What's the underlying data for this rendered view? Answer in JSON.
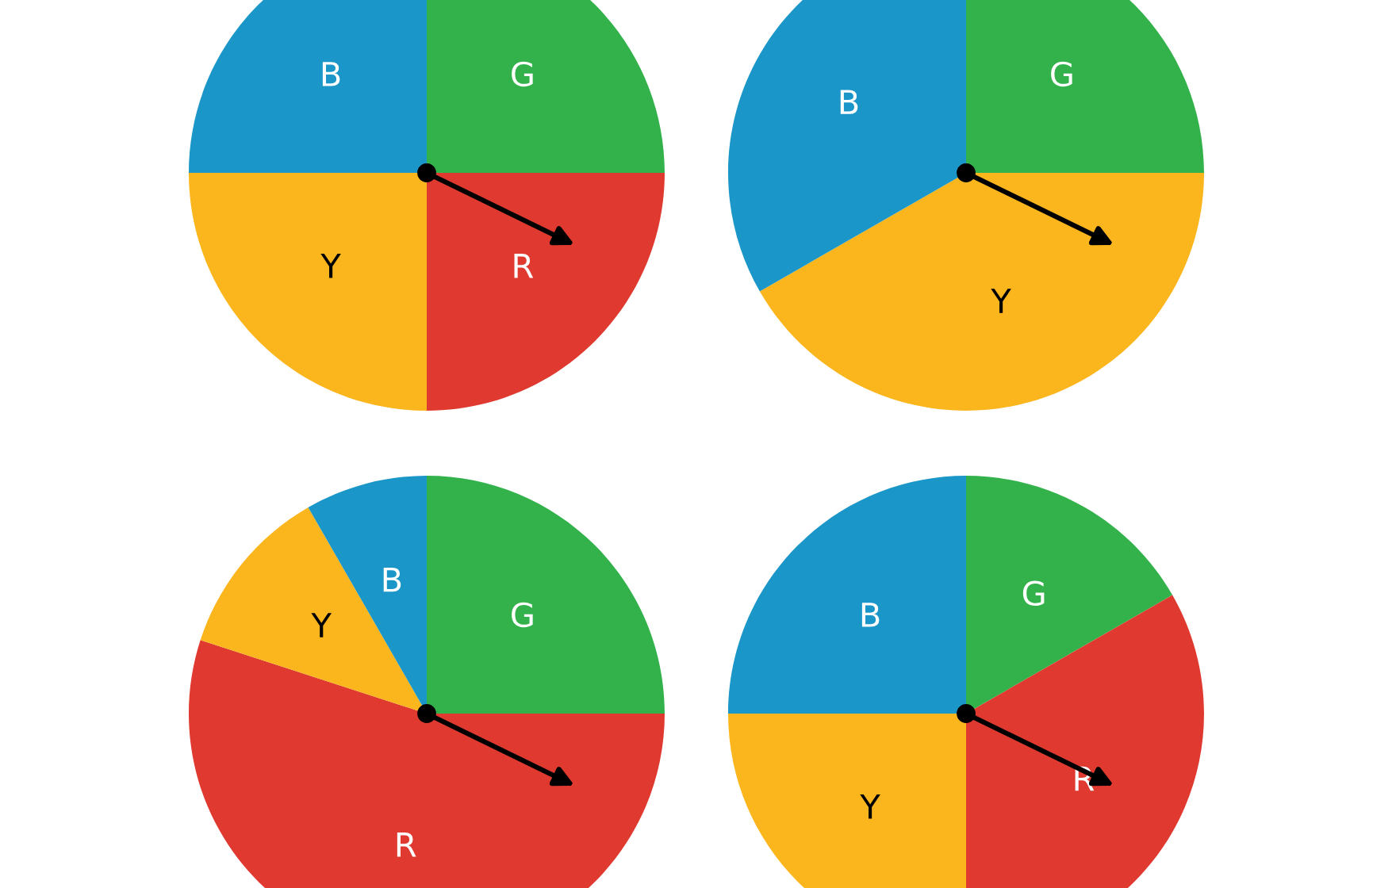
{
  "chart_data": [
    {
      "type": "pie",
      "categories": [
        "G",
        "R",
        "Y",
        "B"
      ],
      "values": [
        25,
        25,
        25,
        25
      ],
      "colors": [
        "#33b24b",
        "#e03a30",
        "#fbb51d",
        "#1a96c8"
      ]
    },
    {
      "type": "pie",
      "categories": [
        "G",
        "Y",
        "B"
      ],
      "values": [
        25,
        41.7,
        33.3
      ],
      "colors": [
        "#33b24b",
        "#fbb51d",
        "#1a96c8"
      ]
    },
    {
      "type": "pie",
      "categories": [
        "G",
        "R",
        "Y",
        "B"
      ],
      "values": [
        25,
        55,
        11.7,
        8.3
      ],
      "colors": [
        "#33b24b",
        "#e03a30",
        "#fbb51d",
        "#1a96c8"
      ]
    },
    {
      "type": "pie",
      "categories": [
        "G",
        "R",
        "Y",
        "B"
      ],
      "values": [
        16.7,
        33.3,
        25,
        25
      ],
      "colors": [
        "#33b24b",
        "#e03a30",
        "#fbb51d",
        "#1a96c8"
      ]
    }
  ]
}
